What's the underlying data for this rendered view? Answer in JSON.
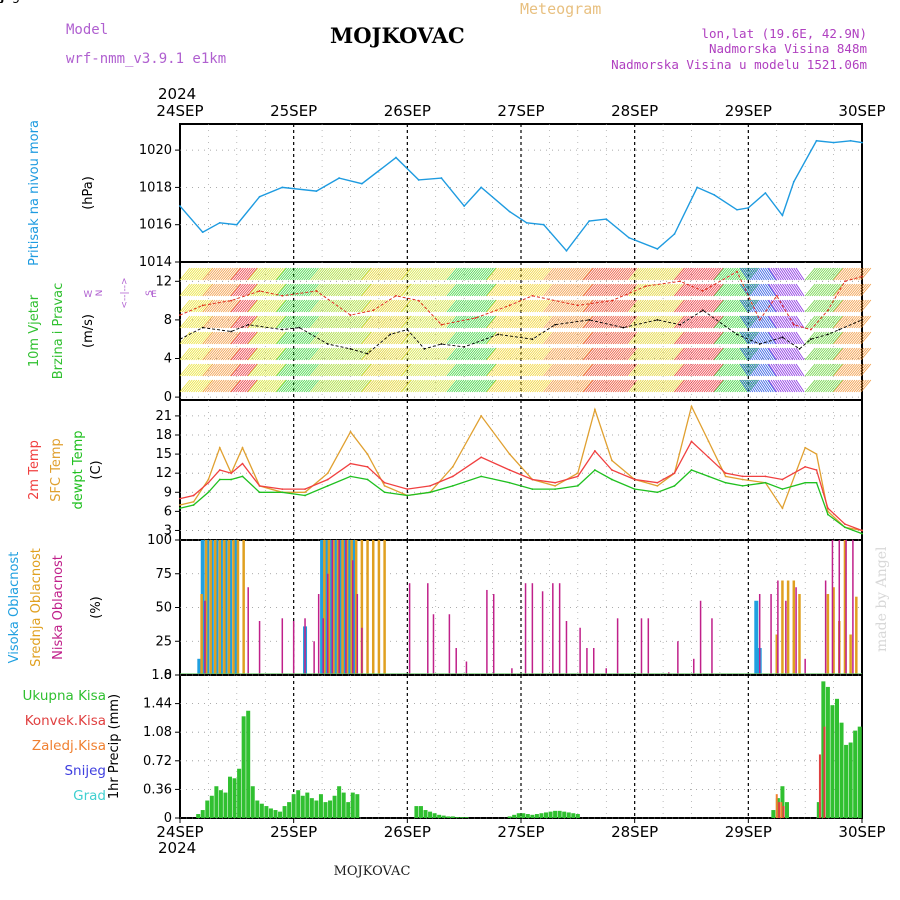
{
  "header": {
    "model_label": "Model",
    "model_name": "wrf-nmm_v3.9.1 e1km",
    "station": "MOJKOVAC",
    "meteogram": "Meteogram",
    "lonlat": "lon,lat (19.6E, 42.9N)",
    "elevation": "Nadmorska Visina 848m",
    "model_elevation": "Nadmorska Visina u modelu 1521.06m",
    "year_top": "2024",
    "year_bottom": "2024",
    "footer_station": "MOJKOVAC",
    "watermark": "made by Angel"
  },
  "colors": {
    "pressure": "#1E9BE0",
    "wind_speed": "#000000",
    "wind_gust": "#E03020",
    "temp2m": "#F04040",
    "sfc_temp": "#E0A030",
    "dewpoint": "#20C020",
    "cloud_high": "#20A0E0",
    "cloud_mid": "#E0A020",
    "cloud_low": "#C0208A",
    "precip_total": "#30C030",
    "precip_conv": "#E04040",
    "precip_frz": "#F08030",
    "snow": "#4040E0",
    "hail": "#40D0D0",
    "grid": "#909090"
  },
  "chart_data": [
    {
      "type": "line",
      "id": "pressure",
      "x_ticks": [
        "24SEP",
        "25SEP",
        "26SEP",
        "27SEP",
        "28SEP",
        "29SEP",
        "30SEP"
      ],
      "ylabel": "(hPa)",
      "side_labels": [
        "Pritisak na nivou mora"
      ],
      "yticks": [
        1014,
        1016,
        1018,
        1020
      ],
      "ylim": [
        1014,
        1021.4
      ],
      "series": [
        {
          "x": [
            0,
            0.2,
            0.35,
            0.5,
            0.7,
            0.9,
            1.2,
            1.4,
            1.6,
            1.9,
            2.1,
            2.3,
            2.5,
            2.65,
            2.9,
            3.05,
            3.2,
            3.4,
            3.6,
            3.75,
            3.95,
            4.2,
            4.35,
            4.55,
            4.7,
            4.9,
            5.0,
            5.15,
            5.3,
            5.4,
            5.6,
            5.75,
            5.9,
            6.0
          ],
          "values": [
            1017.0,
            1015.6,
            1016.1,
            1016.0,
            1017.5,
            1018.0,
            1017.8,
            1018.5,
            1018.2,
            1019.6,
            1018.4,
            1018.5,
            1017.0,
            1018.0,
            1016.7,
            1016.1,
            1016.0,
            1014.6,
            1016.2,
            1016.3,
            1015.3,
            1014.7,
            1015.5,
            1018.0,
            1017.6,
            1016.8,
            1016.9,
            1017.7,
            1016.5,
            1018.3,
            1020.5,
            1020.4,
            1020.5,
            1020.4
          ]
        }
      ]
    },
    {
      "type": "line",
      "id": "wind",
      "ylabel": "(m/s)",
      "side_labels": [
        "10m Vjetar",
        "Brzina i Pravac"
      ],
      "compass": {
        "n": "N",
        "s": "S",
        "e": "E",
        "w": "W"
      },
      "yticks": [
        0,
        4,
        8,
        12
      ],
      "ylim": [
        -0.3,
        14
      ],
      "series": [
        {
          "name": "speed",
          "x": [
            0,
            0.2,
            0.45,
            0.6,
            0.9,
            1.05,
            1.3,
            1.5,
            1.65,
            1.85,
            2.0,
            2.15,
            2.3,
            2.5,
            2.8,
            3.1,
            3.3,
            3.6,
            3.9,
            4.2,
            4.4,
            4.6,
            4.9,
            5.1,
            5.3,
            5.45,
            5.55,
            5.7,
            5.8,
            6.0
          ],
          "values": [
            6.0,
            7.2,
            6.8,
            7.5,
            7.0,
            7.2,
            5.5,
            5.0,
            4.5,
            6.5,
            7.0,
            5.0,
            5.5,
            5.2,
            6.5,
            6.0,
            7.5,
            8.0,
            7.2,
            8.0,
            7.5,
            9.0,
            6.5,
            5.5,
            6.2,
            5.0,
            6.0,
            6.5,
            7.0,
            8.0
          ]
        },
        {
          "name": "gust",
          "x": [
            0,
            0.2,
            0.45,
            0.7,
            0.9,
            1.2,
            1.5,
            1.7,
            1.9,
            2.1,
            2.3,
            2.6,
            2.9,
            3.1,
            3.5,
            3.8,
            4.1,
            4.4,
            4.6,
            4.9,
            5.1,
            5.25,
            5.4,
            5.55,
            5.7,
            5.85,
            6.0
          ],
          "values": [
            8.5,
            9.5,
            10.0,
            11.0,
            10.5,
            11.0,
            8.5,
            9.0,
            10.5,
            10.0,
            7.5,
            8.2,
            9.5,
            10.5,
            9.5,
            10.0,
            11.5,
            12.0,
            11.0,
            13.0,
            8.0,
            10.5,
            7.5,
            7.0,
            9.0,
            12.0,
            12.5
          ]
        }
      ],
      "barb_segments": [
        {
          "from": 0.0,
          "to": 0.2,
          "color": "#E8E020"
        },
        {
          "from": 0.2,
          "to": 0.45,
          "color": "#F09030"
        },
        {
          "from": 0.45,
          "to": 0.6,
          "color": "#E82830"
        },
        {
          "from": 0.6,
          "to": 0.85,
          "color": "#D0E020"
        },
        {
          "from": 0.85,
          "to": 1.15,
          "color": "#30D030"
        },
        {
          "from": 1.15,
          "to": 1.6,
          "color": "#A0D820"
        },
        {
          "from": 1.6,
          "to": 1.95,
          "color": "#E0D020"
        },
        {
          "from": 1.95,
          "to": 2.35,
          "color": "#D0E030"
        },
        {
          "from": 2.35,
          "to": 2.7,
          "color": "#30D030"
        },
        {
          "from": 2.7,
          "to": 3.2,
          "color": "#F0D020"
        },
        {
          "from": 3.2,
          "to": 3.55,
          "color": "#F09030"
        },
        {
          "from": 3.55,
          "to": 3.95,
          "color": "#E84020"
        },
        {
          "from": 3.95,
          "to": 4.35,
          "color": "#E0D020"
        },
        {
          "from": 4.35,
          "to": 4.7,
          "color": "#E82830"
        },
        {
          "from": 4.7,
          "to": 5.0,
          "color": "#30D030"
        },
        {
          "from": 5.0,
          "to": 5.25,
          "color": "#2050E0"
        },
        {
          "from": 5.25,
          "to": 5.5,
          "color": "#8020E0"
        },
        {
          "from": 5.5,
          "to": 5.75,
          "color": "#60D030"
        },
        {
          "from": 5.75,
          "to": 6.0,
          "color": "#F09030"
        }
      ]
    },
    {
      "type": "line",
      "id": "temperature",
      "ylabel": "(C)",
      "side_labels": [
        "2m Temp",
        "SFC Temp",
        "dewpt Temp"
      ],
      "yticks": [
        3,
        6,
        9,
        12,
        15,
        18,
        21
      ],
      "ylim": [
        1.5,
        23.5
      ],
      "series": [
        {
          "name": "sfc",
          "x": [
            0,
            0.12,
            0.25,
            0.35,
            0.45,
            0.55,
            0.7,
            0.9,
            1.1,
            1.3,
            1.5,
            1.65,
            1.8,
            2.0,
            2.2,
            2.4,
            2.65,
            2.9,
            3.1,
            3.3,
            3.5,
            3.65,
            3.8,
            4.0,
            4.2,
            4.35,
            4.5,
            4.65,
            4.8,
            4.95,
            5.15,
            5.3,
            5.5,
            5.6,
            5.7,
            5.85,
            6.0
          ],
          "values": [
            7,
            7.5,
            11,
            16,
            12,
            16,
            10,
            9,
            9,
            12,
            18.5,
            15,
            10,
            8.5,
            9,
            13,
            21,
            15,
            11,
            10,
            12,
            22,
            14,
            11,
            10,
            12,
            22.5,
            17,
            11.5,
            11,
            10.5,
            6.5,
            16,
            15,
            6,
            3.5,
            3
          ]
        },
        {
          "name": "t2m",
          "x": [
            0,
            0.12,
            0.25,
            0.35,
            0.45,
            0.55,
            0.7,
            0.9,
            1.1,
            1.3,
            1.5,
            1.65,
            1.8,
            2.0,
            2.2,
            2.4,
            2.65,
            2.9,
            3.1,
            3.3,
            3.5,
            3.65,
            3.8,
            4.0,
            4.2,
            4.35,
            4.5,
            4.65,
            4.8,
            4.95,
            5.15,
            5.3,
            5.5,
            5.6,
            5.7,
            5.85,
            6.0
          ],
          "values": [
            8,
            8.5,
            10.5,
            12.5,
            12,
            13.5,
            10,
            9.5,
            9.5,
            11,
            13.5,
            13,
            10.5,
            9.5,
            10,
            11.5,
            14.5,
            12.5,
            11,
            10.5,
            11.5,
            15.5,
            12.5,
            11,
            10.5,
            12,
            17,
            14.5,
            12,
            11.5,
            11.5,
            11,
            13,
            12.5,
            6.5,
            4,
            3
          ]
        },
        {
          "name": "dew",
          "x": [
            0,
            0.12,
            0.25,
            0.35,
            0.45,
            0.55,
            0.7,
            0.9,
            1.1,
            1.3,
            1.5,
            1.65,
            1.8,
            2.0,
            2.2,
            2.4,
            2.65,
            2.9,
            3.1,
            3.3,
            3.5,
            3.65,
            3.8,
            4.0,
            4.2,
            4.35,
            4.5,
            4.65,
            4.8,
            4.95,
            5.15,
            5.3,
            5.5,
            5.6,
            5.7,
            5.85,
            6.0
          ],
          "values": [
            6.5,
            7,
            9,
            11,
            11,
            11.5,
            9,
            9,
            8.5,
            10,
            11.5,
            11,
            9,
            8.5,
            9,
            10,
            11.5,
            10.5,
            9.5,
            9.5,
            10,
            12.5,
            11,
            9.5,
            9,
            10,
            12.5,
            11.5,
            10.5,
            10,
            10.5,
            9.5,
            10.5,
            10.5,
            5.5,
            3.5,
            2.5
          ]
        }
      ]
    },
    {
      "type": "bar",
      "id": "clouds",
      "ylabel": "(%)",
      "side_labels": [
        "Visoka Oblacnost",
        "Srednja Oblacnost",
        "Niska Oblacnost"
      ],
      "yticks": [
        0,
        25,
        50,
        75,
        100
      ],
      "ylim": [
        0,
        100
      ],
      "series": [
        {
          "name": "high",
          "x": [
            0.17,
            0.2,
            0.24,
            0.28,
            0.32,
            0.36,
            0.4,
            0.44,
            0.48,
            0.5,
            1.1,
            1.25,
            1.29,
            1.33,
            1.37,
            1.41,
            1.45,
            1.49,
            1.53,
            5.07,
            5.1
          ],
          "values": [
            12,
            100,
            100,
            100,
            100,
            100,
            100,
            100,
            100,
            100,
            36,
            100,
            100,
            100,
            100,
            100,
            100,
            100,
            100,
            55,
            20
          ]
        },
        {
          "name": "mid",
          "x": [
            0.19,
            0.23,
            0.27,
            0.31,
            0.35,
            0.39,
            0.43,
            0.47,
            0.51,
            0.56,
            1.27,
            1.31,
            1.35,
            1.39,
            1.43,
            1.47,
            1.51,
            1.55,
            1.6,
            1.65,
            1.7,
            1.75,
            1.8,
            5.25,
            5.3,
            5.35,
            5.4,
            5.45,
            5.7,
            5.75,
            5.8,
            5.85,
            5.9,
            5.95
          ],
          "values": [
            60,
            100,
            100,
            100,
            100,
            100,
            100,
            100,
            100,
            100,
            100,
            100,
            100,
            100,
            100,
            100,
            100,
            100,
            100,
            100,
            100,
            100,
            100,
            30,
            70,
            70,
            70,
            60,
            60,
            65,
            40,
            100,
            30,
            58
          ]
        },
        {
          "name": "low",
          "x": [
            0.22,
            0.6,
            0.7,
            0.9,
            1.0,
            1.1,
            1.18,
            1.22,
            1.26,
            1.3,
            1.34,
            1.4,
            1.46,
            1.52,
            1.56,
            1.6,
            2.02,
            2.18,
            2.23,
            2.37,
            2.43,
            2.52,
            2.7,
            2.76,
            2.92,
            3.04,
            3.1,
            3.19,
            3.28,
            3.34,
            3.4,
            3.52,
            3.58,
            3.64,
            3.75,
            3.85,
            4.06,
            4.12,
            4.3,
            4.38,
            4.52,
            4.58,
            4.68,
            5.1,
            5.2,
            5.26,
            5.33,
            5.42,
            5.5,
            5.68,
            5.74,
            5.8,
            5.86,
            5.92
          ],
          "values": [
            55,
            65,
            40,
            42,
            40,
            42,
            25,
            60,
            42,
            75,
            100,
            100,
            100,
            85,
            60,
            35,
            68,
            68,
            45,
            45,
            20,
            10,
            63,
            60,
            5,
            68,
            68,
            62,
            68,
            68,
            40,
            35,
            20,
            20,
            5,
            42,
            42,
            42,
            2,
            25,
            12,
            55,
            42,
            60,
            60,
            70,
            55,
            65,
            12,
            70,
            100,
            100,
            100,
            100
          ]
        }
      ]
    },
    {
      "type": "bar",
      "id": "precip",
      "x_ticks": [
        "24SEP",
        "25SEP",
        "26SEP",
        "27SEP",
        "28SEP",
        "29SEP",
        "30SEP"
      ],
      "ylabel": "1hr Precip (mm)",
      "side_labels": [
        "Ukupna Kisa",
        "Konvek.Kisa",
        "Zaledj.Kisa",
        "Snijeg",
        "Grad"
      ],
      "yticks": [
        0,
        0.36,
        0.72,
        1.08,
        1.44,
        1.8
      ],
      "ylim": [
        0,
        1.8
      ],
      "series": [
        {
          "name": "total",
          "x": [
            0.16,
            0.2,
            0.24,
            0.28,
            0.32,
            0.36,
            0.4,
            0.44,
            0.48,
            0.52,
            0.56,
            0.6,
            0.64,
            0.68,
            0.72,
            0.76,
            0.8,
            0.84,
            0.88,
            0.92,
            0.96,
            1.0,
            1.04,
            1.08,
            1.12,
            1.16,
            1.2,
            1.24,
            1.28,
            1.32,
            1.36,
            1.4,
            1.44,
            1.48,
            1.52,
            1.56,
            2.08,
            2.12,
            2.16,
            2.2,
            2.24,
            2.28,
            2.32,
            2.36,
            2.4,
            2.44,
            2.48,
            2.52,
            2.9,
            2.94,
            2.98,
            3.02,
            3.06,
            3.1,
            3.14,
            3.18,
            3.22,
            3.26,
            3.3,
            3.34,
            3.38,
            3.42,
            3.46,
            3.5,
            5.22,
            5.26,
            5.3,
            5.34,
            5.62,
            5.66,
            5.7,
            5.74,
            5.78,
            5.82,
            5.86,
            5.9,
            5.94,
            5.98
          ],
          "values": [
            0.05,
            0.1,
            0.22,
            0.28,
            0.4,
            0.35,
            0.32,
            0.52,
            0.5,
            0.62,
            1.28,
            1.35,
            0.4,
            0.22,
            0.18,
            0.15,
            0.12,
            0.1,
            0.08,
            0.15,
            0.2,
            0.3,
            0.35,
            0.28,
            0.32,
            0.25,
            0.22,
            0.3,
            0.2,
            0.22,
            0.28,
            0.4,
            0.32,
            0.2,
            0.32,
            0.3,
            0.15,
            0.15,
            0.1,
            0.08,
            0.06,
            0.04,
            0.03,
            0.02,
            0.02,
            0.01,
            0.01,
            0.01,
            0.02,
            0.04,
            0.06,
            0.06,
            0.05,
            0.04,
            0.05,
            0.06,
            0.07,
            0.08,
            0.09,
            0.09,
            0.08,
            0.07,
            0.06,
            0.05,
            0.1,
            0.25,
            0.4,
            0.2,
            0.2,
            1.72,
            1.65,
            1.42,
            1.5,
            1.2,
            0.92,
            0.95,
            1.1,
            1.15
          ]
        },
        {
          "name": "convective",
          "x": [
            5.27,
            5.31,
            5.63,
            5.67
          ],
          "values": [
            0.2,
            0.15,
            0.8,
            1.15
          ]
        },
        {
          "name": "frozen",
          "x": [
            5.25,
            5.29
          ],
          "values": [
            0.3,
            0.2
          ]
        }
      ]
    }
  ]
}
